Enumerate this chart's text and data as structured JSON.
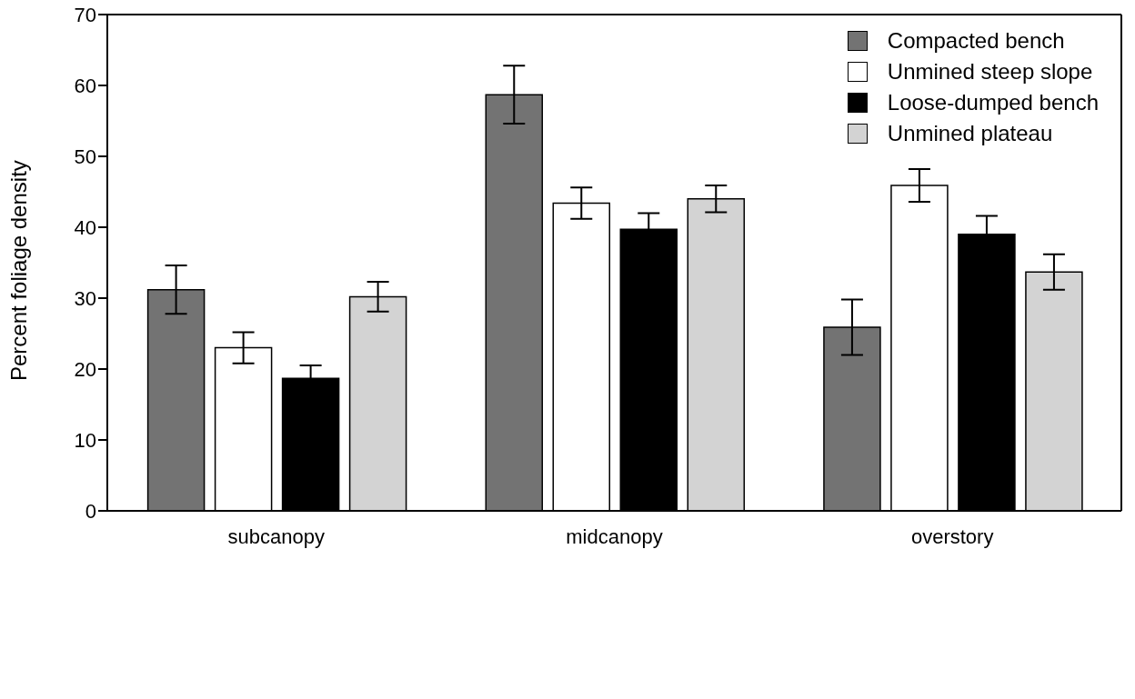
{
  "chart_data": {
    "type": "bar",
    "ylabel": "Percent foliage density",
    "categories": [
      "subcanopy",
      "midcanopy",
      "overstory"
    ],
    "series": [
      {
        "name": "Compacted bench",
        "color": "#737373",
        "values": [
          31.2,
          58.7,
          25.9
        ],
        "errors": [
          3.4,
          4.1,
          3.9
        ]
      },
      {
        "name": "Unmined steep slope",
        "color": "#ffffff",
        "values": [
          23.0,
          43.4,
          45.9
        ],
        "errors": [
          2.2,
          2.2,
          2.3
        ]
      },
      {
        "name": "Loose-dumped bench",
        "color": "#000000",
        "values": [
          18.7,
          39.7,
          39.0
        ],
        "errors": [
          1.8,
          2.3,
          2.6
        ]
      },
      {
        "name": "Unmined plateau",
        "color": "#d3d3d3",
        "values": [
          30.2,
          44.0,
          33.7
        ],
        "errors": [
          2.1,
          1.9,
          2.5
        ]
      }
    ],
    "ylim": [
      0,
      70
    ],
    "yticks": [
      0,
      10,
      20,
      30,
      40,
      50,
      60,
      70
    ],
    "grid": false,
    "legend": "top right"
  }
}
